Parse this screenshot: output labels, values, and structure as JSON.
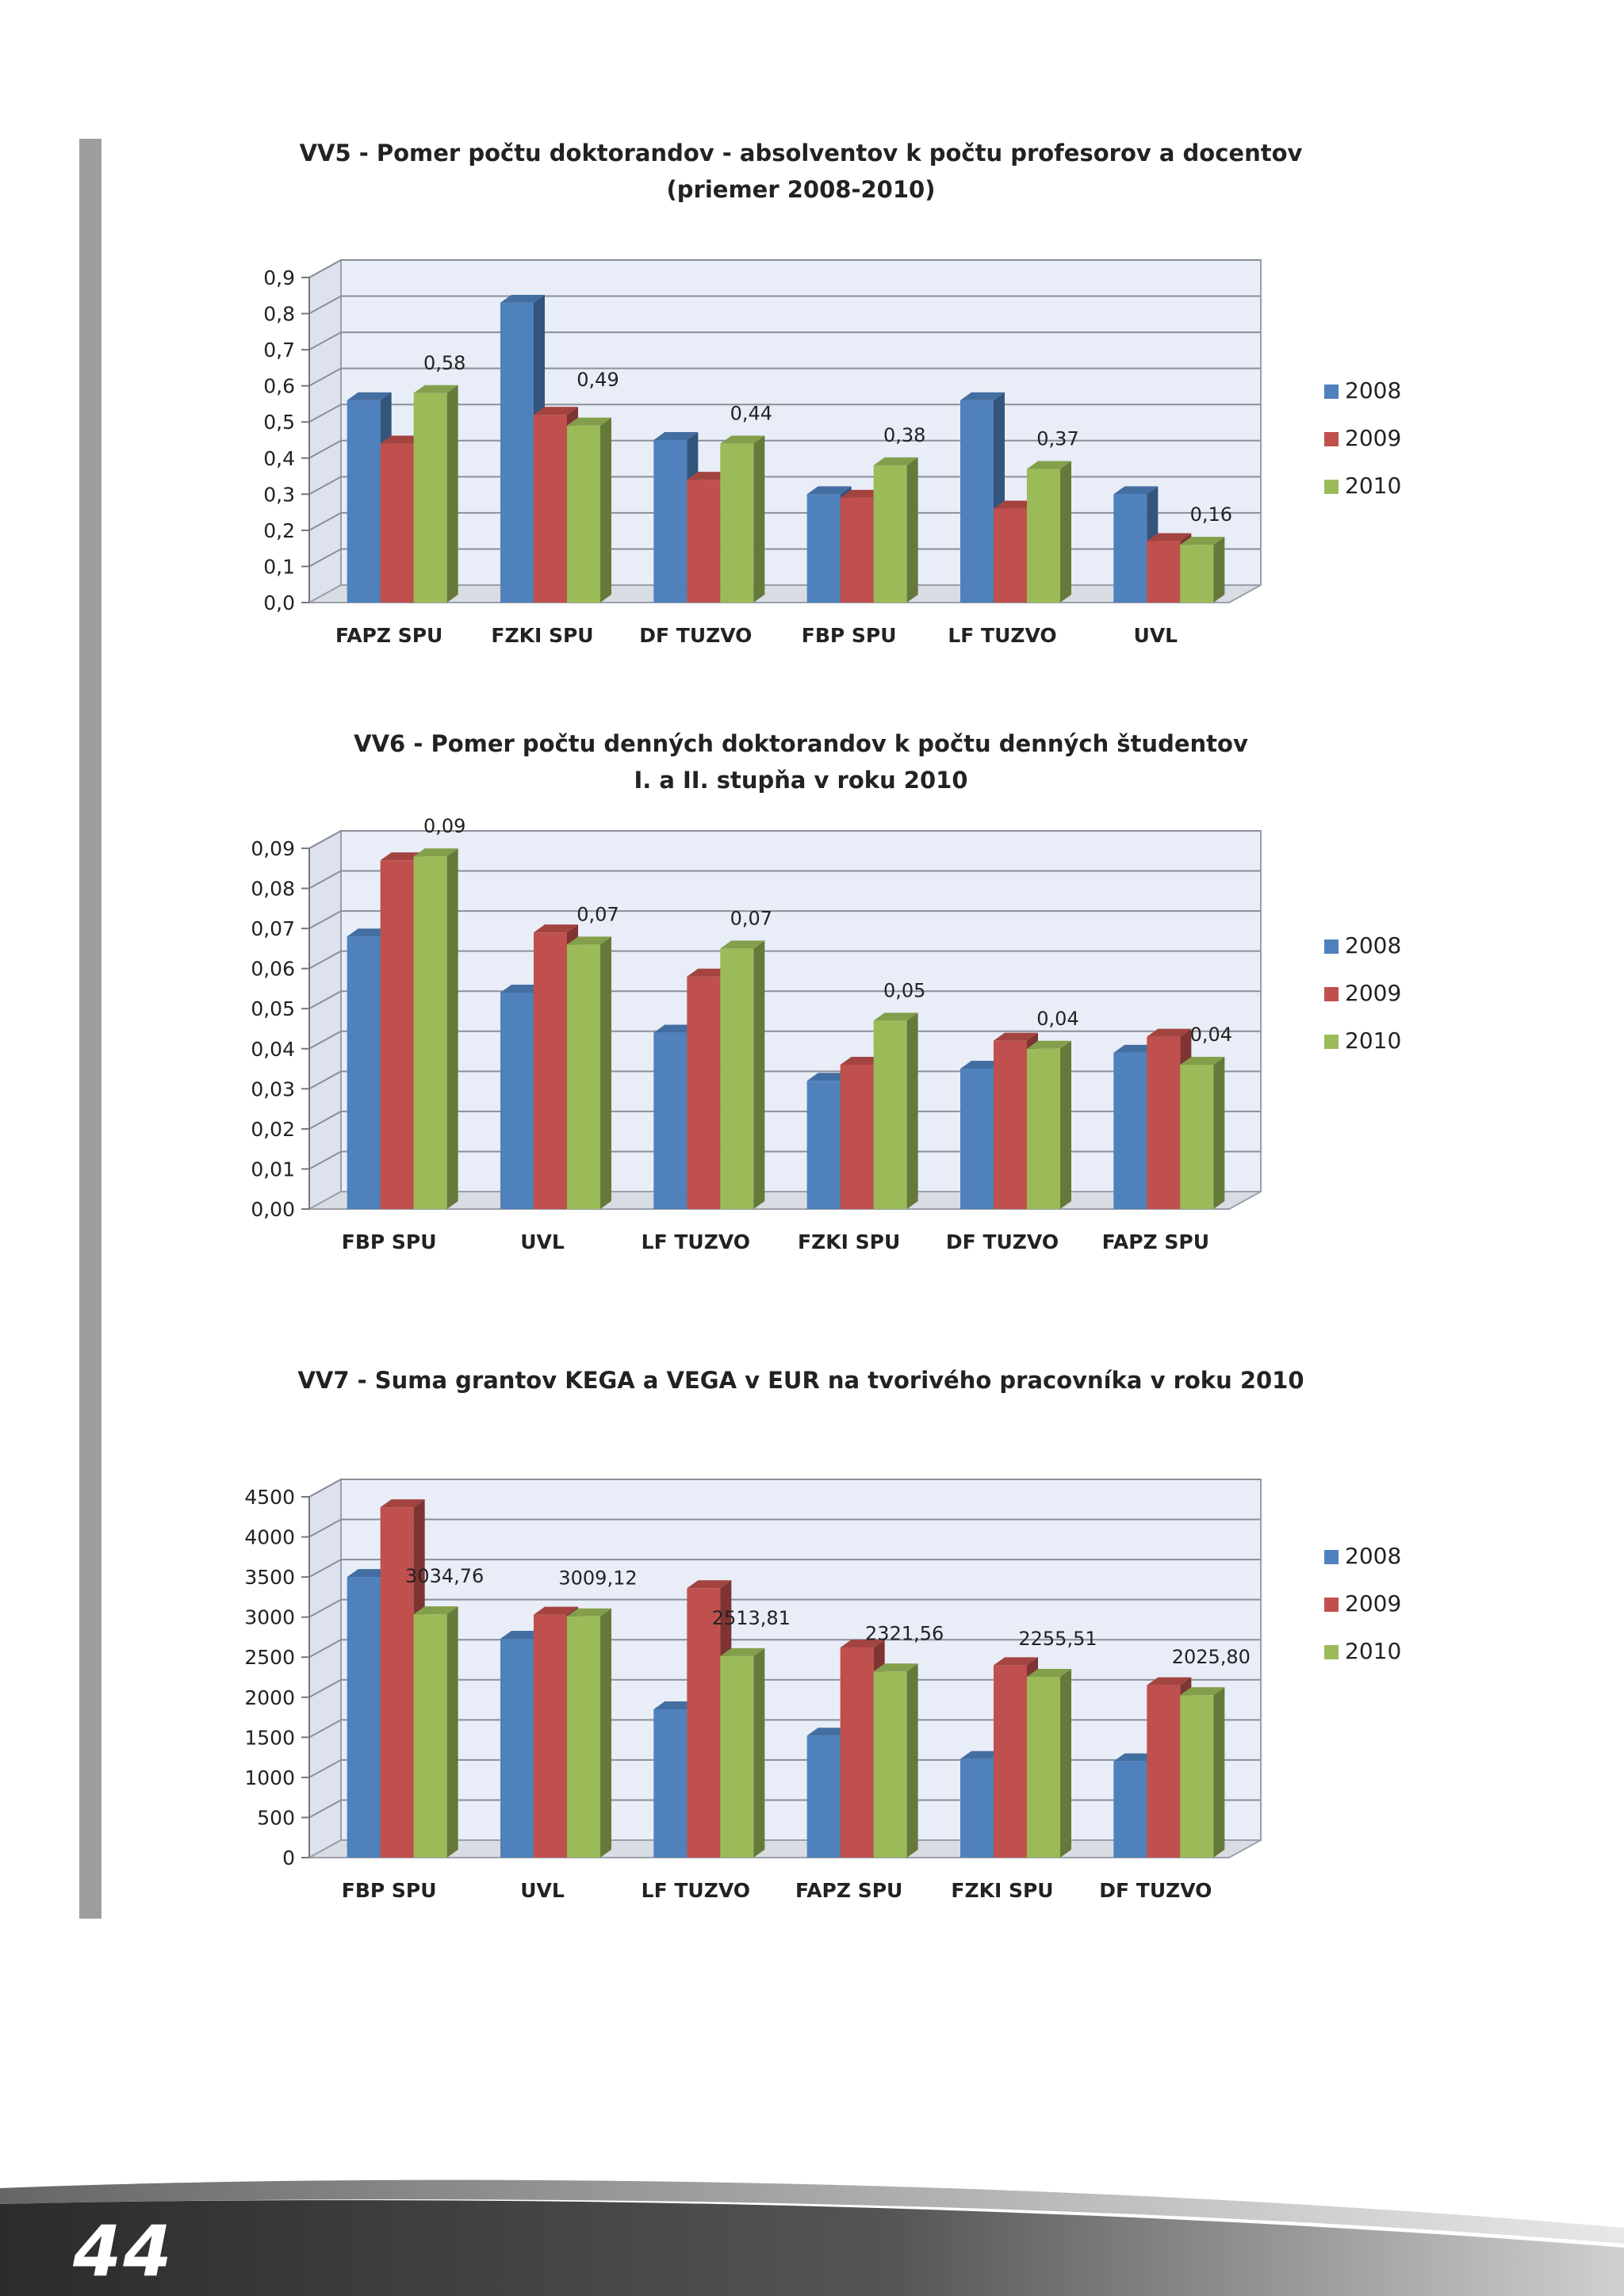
{
  "page": {
    "number": "44"
  },
  "series_colors": {
    "2008": "#4f81bd",
    "2009": "#c0504d",
    "2010": "#9bbb59"
  },
  "chart_data": [
    {
      "id": "vv5",
      "type": "bar",
      "title_line1": "VV5 - Pomer počtu doktorandov - absolventov k počtu profesorov a docentov",
      "title_line2": "(priemer 2008-2010)",
      "categories": [
        "FAPZ SPU",
        "FZKI SPU",
        "DF TUZVO",
        "FBP SPU",
        "LF  TUZVO",
        "UVL"
      ],
      "series": [
        {
          "name": "2008",
          "values": [
            0.56,
            0.83,
            0.45,
            0.3,
            0.56,
            0.3
          ]
        },
        {
          "name": "2009",
          "values": [
            0.44,
            0.52,
            0.34,
            0.29,
            0.26,
            0.17
          ]
        },
        {
          "name": "2010",
          "values": [
            0.58,
            0.49,
            0.44,
            0.38,
            0.37,
            0.16
          ]
        }
      ],
      "data_labels": [
        "0,58",
        "0,49",
        "0,44",
        "0,38",
        "0,37",
        "0,16"
      ],
      "ylim": [
        0,
        0.9
      ],
      "yticks": [
        "0,0",
        "0,1",
        "0,2",
        "0,3",
        "0,4",
        "0,5",
        "0,6",
        "0,7",
        "0,8",
        "0,9"
      ],
      "legend": [
        "2008",
        "2009",
        "2010"
      ],
      "legend_position": "right",
      "grid": true
    },
    {
      "id": "vv6",
      "type": "bar",
      "title_line1": "VV6 - Pomer počtu denných doktorandov k počtu denných študentov",
      "title_line2": "I. a II. stupňa v roku 2010",
      "categories": [
        "FBP SPU",
        "UVL",
        "LF  TUZVO",
        "FZKI SPU",
        "DF TUZVO",
        "FAPZ SPU"
      ],
      "series": [
        {
          "name": "2008",
          "values": [
            0.068,
            0.054,
            0.044,
            0.032,
            0.035,
            0.039
          ]
        },
        {
          "name": "2009",
          "values": [
            0.087,
            0.069,
            0.058,
            0.036,
            0.042,
            0.043
          ]
        },
        {
          "name": "2010",
          "values": [
            0.088,
            0.066,
            0.065,
            0.047,
            0.04,
            0.036
          ]
        }
      ],
      "data_labels": [
        "0,09",
        "0,07",
        "0,07",
        "0,05",
        "0,04",
        "0,04"
      ],
      "ylim": [
        0,
        0.09
      ],
      "yticks": [
        "0,00",
        "0,01",
        "0,02",
        "0,03",
        "0,04",
        "0,05",
        "0,06",
        "0,07",
        "0,08",
        "0,09"
      ],
      "legend": [
        "2008",
        "2009",
        "2010"
      ],
      "legend_position": "right",
      "grid": true
    },
    {
      "id": "vv7",
      "type": "bar",
      "title_line1": "VV7 - Suma grantov KEGA a VEGA v EUR na tvorivého pracovníka v roku 2010",
      "title_line2": "",
      "categories": [
        "FBP SPU",
        "UVL",
        "LF  TUZVO",
        "FAPZ SPU",
        "FZKI SPU",
        "DF TUZVO"
      ],
      "series": [
        {
          "name": "2008",
          "values": [
            3500,
            2730,
            1850,
            1520,
            1230,
            1200
          ]
        },
        {
          "name": "2009",
          "values": [
            4370,
            3030,
            3360,
            2620,
            2400,
            2150
          ]
        },
        {
          "name": "2010",
          "values": [
            3034.76,
            3009.12,
            2513.81,
            2321.56,
            2255.51,
            2025.8
          ]
        }
      ],
      "data_labels": [
        "3034,76",
        "3009,12",
        "2513,81",
        "2321,56",
        "2255,51",
        "2025,80"
      ],
      "ylim": [
        0,
        4500
      ],
      "yticks": [
        "0",
        "500",
        "1000",
        "1500",
        "2000",
        "2500",
        "3000",
        "3500",
        "4000",
        "4500"
      ],
      "legend": [
        "2008",
        "2009",
        "2010"
      ],
      "legend_position": "right",
      "grid": true
    }
  ]
}
